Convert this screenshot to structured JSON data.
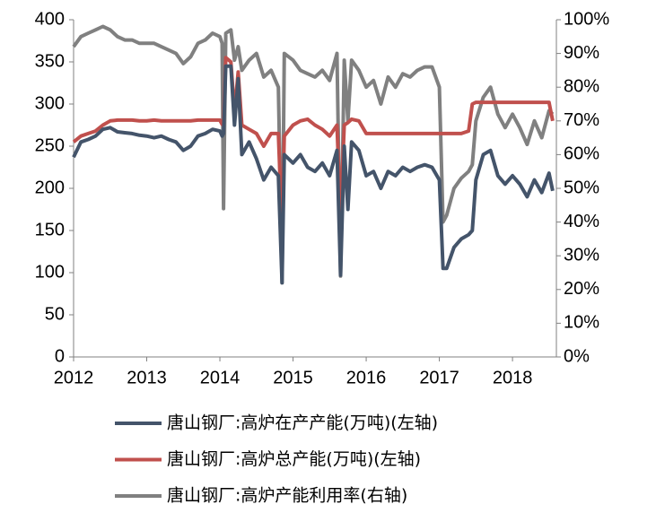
{
  "chart_data": {
    "type": "line",
    "x": [
      2012.0,
      2012.1,
      2012.2,
      2012.3,
      2012.4,
      2012.5,
      2012.6,
      2012.7,
      2012.8,
      2012.9,
      2013.0,
      2013.1,
      2013.2,
      2013.3,
      2013.4,
      2013.5,
      2013.6,
      2013.7,
      2013.8,
      2013.9,
      2014.0,
      2014.03,
      2014.05,
      2014.08,
      2014.15,
      2014.2,
      2014.25,
      2014.3,
      2014.4,
      2014.5,
      2014.6,
      2014.7,
      2014.8,
      2014.85,
      2014.88,
      2015.0,
      2015.1,
      2015.2,
      2015.3,
      2015.4,
      2015.5,
      2015.6,
      2015.65,
      2015.7,
      2015.75,
      2015.8,
      2015.9,
      2016.0,
      2016.1,
      2016.2,
      2016.3,
      2016.4,
      2016.5,
      2016.6,
      2016.7,
      2016.8,
      2016.9,
      2017.0,
      2017.05,
      2017.1,
      2017.2,
      2017.3,
      2017.4,
      2017.45,
      2017.5,
      2017.6,
      2017.7,
      2017.8,
      2017.9,
      2018.0,
      2018.1,
      2018.2,
      2018.3,
      2018.4,
      2018.5,
      2018.55
    ],
    "series": [
      {
        "name": "唐山钢厂:高炉在产产能(万吨)(左轴)",
        "color": "#44546a",
        "axis": "y",
        "values": [
          237,
          255,
          258,
          262,
          270,
          272,
          267,
          266,
          265,
          263,
          262,
          260,
          262,
          258,
          255,
          245,
          250,
          262,
          265,
          270,
          268,
          262,
          265,
          345,
          345,
          275,
          330,
          240,
          255,
          235,
          210,
          225,
          215,
          88,
          240,
          230,
          240,
          225,
          220,
          230,
          215,
          245,
          97,
          250,
          175,
          255,
          245,
          215,
          220,
          200,
          220,
          215,
          225,
          220,
          225,
          228,
          225,
          210,
          105,
          105,
          130,
          140,
          145,
          150,
          210,
          240,
          245,
          215,
          205,
          215,
          205,
          190,
          210,
          195,
          218,
          197
        ]
      },
      {
        "name": "唐山钢厂:高炉总产能(万吨)(左轴)",
        "color": "#c0504d",
        "axis": "y",
        "values": [
          255,
          262,
          265,
          268,
          275,
          280,
          281,
          281,
          281,
          280,
          280,
          281,
          280,
          280,
          280,
          280,
          280,
          281,
          281,
          281,
          281,
          276,
          280,
          355,
          350,
          290,
          338,
          275,
          270,
          265,
          250,
          265,
          265,
          150,
          262,
          275,
          280,
          282,
          275,
          270,
          262,
          275,
          165,
          275,
          278,
          282,
          280,
          265,
          265,
          265,
          265,
          265,
          265,
          265,
          265,
          265,
          265,
          265,
          265,
          265,
          265,
          265,
          268,
          300,
          302,
          302,
          302,
          302,
          302,
          302,
          302,
          302,
          302,
          302,
          302,
          280
        ]
      },
      {
        "name": "唐山钢厂:高炉产能利用率(右轴)",
        "color": "#808080",
        "axis": "y2",
        "values": [
          92,
          95,
          96,
          97,
          98,
          97,
          95,
          94,
          94,
          93,
          93,
          93,
          92,
          91,
          90,
          87,
          89,
          93,
          94,
          96,
          95,
          93,
          44,
          96,
          97,
          88,
          92,
          85,
          88,
          90,
          83,
          85,
          80,
          22,
          90,
          88,
          85,
          84,
          83,
          85,
          82,
          90,
          24,
          88,
          70,
          88,
          85,
          80,
          82,
          75,
          83,
          80,
          84,
          83,
          85,
          86,
          86,
          80,
          40,
          42,
          50,
          53,
          55,
          57,
          70,
          77,
          80,
          72,
          68,
          72,
          68,
          63,
          70,
          65,
          73,
          72
        ]
      }
    ],
    "xlim": [
      2012,
      2018.6
    ],
    "xticks": [
      2012,
      2013,
      2014,
      2015,
      2016,
      2017,
      2018
    ],
    "ylim": [
      0,
      400
    ],
    "yticks": [
      0,
      50,
      100,
      150,
      200,
      250,
      300,
      350,
      400
    ],
    "y2lim": [
      0,
      100
    ],
    "y2ticks": [
      {
        "value": 0,
        "label": "0%"
      },
      {
        "value": 10,
        "label": "10%"
      },
      {
        "value": 20,
        "label": "20%"
      },
      {
        "value": 30,
        "label": "30%"
      },
      {
        "value": 40,
        "label": "40%"
      },
      {
        "value": 50,
        "label": "50%"
      },
      {
        "value": 60,
        "label": "60%"
      },
      {
        "value": 70,
        "label": "70%"
      },
      {
        "value": 80,
        "label": "80%"
      },
      {
        "value": 90,
        "label": "90%"
      },
      {
        "value": 100,
        "label": "100%"
      }
    ],
    "legend": "bottom"
  }
}
